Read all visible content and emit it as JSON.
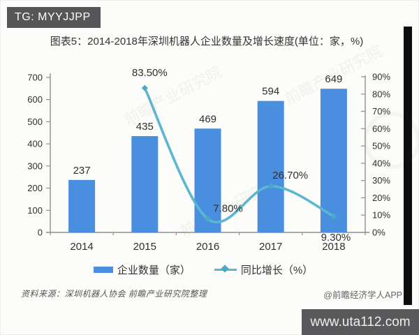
{
  "overlay": {
    "badge": "TG: MYYJJPP",
    "url_watermark": "www.uta112.com",
    "credit": "@前瞻经济学人APP"
  },
  "title": "图表5：2014-2018年深圳机器人企业数量及增长速度(单位：家，%)",
  "source": "资料来源：深圳机器人协会 前瞻产业研究院整理",
  "watermark_text": "前瞻产业研究院",
  "colors": {
    "bar": "#4a8ee0",
    "line": "#5cb6d2",
    "marker": "#4aa9c6",
    "axis": "#8f8f8f",
    "label": "#2f2f2f"
  },
  "legend": {
    "items": [
      {
        "label": "企业数量（家）",
        "type": "bar"
      },
      {
        "label": "同比增长（%）",
        "type": "line"
      }
    ]
  },
  "chart_data": {
    "type": "bar+line combo",
    "title": "图表5：2014-2018年深圳机器人企业数量及增长速度(单位：家，%)",
    "categories": [
      "2014",
      "2015",
      "2016",
      "2017",
      "2018"
    ],
    "series": [
      {
        "name": "企业数量（家）",
        "type": "bar",
        "axis": "left",
        "values": [
          237,
          435,
          469,
          594,
          649
        ],
        "labels": [
          "237",
          "435",
          "469",
          "594",
          "649"
        ]
      },
      {
        "name": "同比增长（%）",
        "type": "line",
        "axis": "right",
        "values": [
          null,
          83.5,
          7.8,
          26.7,
          9.3
        ],
        "labels": [
          null,
          "83.50%",
          "7.80%",
          "26.70%",
          "9.30%"
        ]
      }
    ],
    "left_axis": {
      "min": 0,
      "max": 700,
      "step": 100,
      "ticks": [
        "0",
        "100",
        "200",
        "300",
        "400",
        "500",
        "600",
        "700"
      ]
    },
    "right_axis": {
      "min": 0,
      "max": 90,
      "step": 10,
      "ticks": [
        "0%",
        "10%",
        "20%",
        "30%",
        "40%",
        "50%",
        "60%",
        "70%",
        "80%",
        "90%"
      ]
    },
    "grid": false,
    "legend_position": "bottom"
  }
}
